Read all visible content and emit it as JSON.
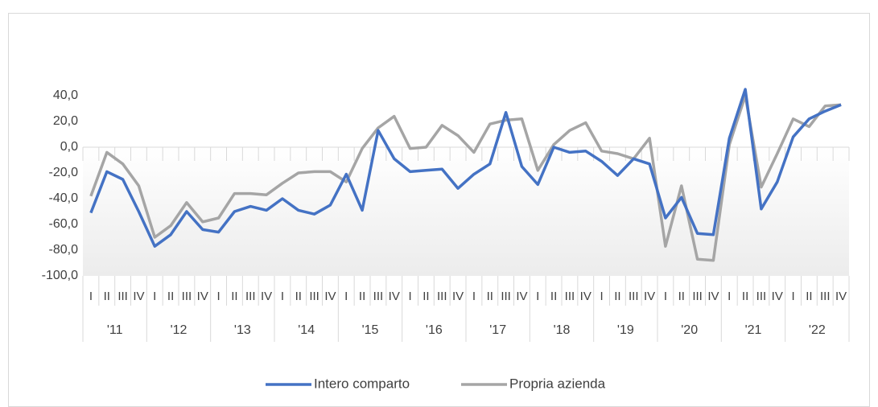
{
  "chart_data": {
    "type": "line",
    "categories": [
      "I",
      "II",
      "III",
      "IV",
      "I",
      "II",
      "III",
      "IV",
      "I",
      "II",
      "III",
      "IV",
      "I",
      "II",
      "III",
      "IV",
      "I",
      "II",
      "III",
      "IV",
      "I",
      "II",
      "III",
      "IV",
      "I",
      "II",
      "III",
      "IV",
      "I",
      "II",
      "III",
      "IV",
      "I",
      "II",
      "III",
      "IV",
      "I",
      "II",
      "III",
      "IV",
      "I",
      "II",
      "III",
      "IV",
      "I",
      "II",
      "III",
      "IV"
    ],
    "years": [
      "'11",
      "'12",
      "'13",
      "'14",
      "'15",
      "'16",
      "'17",
      "'18",
      "'19",
      "'20",
      "'21",
      "'22"
    ],
    "series": [
      {
        "name": "Intero comparto",
        "color": "#4472c4",
        "values": [
          -51,
          -19,
          -25,
          -50,
          -77,
          -68,
          -50,
          -64,
          -66,
          -50,
          -46,
          -49,
          -40,
          -49,
          -52,
          -45,
          -21,
          -49,
          13,
          -9,
          -19,
          -18,
          -17,
          -32,
          -21,
          -13,
          27,
          -15,
          -29,
          0,
          -4,
          -3,
          -11,
          -22,
          -9,
          -13,
          -55,
          -39,
          -67,
          -68,
          7,
          45,
          -48,
          -27,
          8,
          22,
          28,
          33
        ]
      },
      {
        "name": "Propria azienda",
        "color": "#a5a5a5",
        "values": [
          -38,
          -4,
          -13,
          -30,
          -70,
          -61,
          -43,
          -58,
          -55,
          -36,
          -36,
          -37,
          -28,
          -20,
          -19,
          -19,
          -27,
          -1,
          15,
          24,
          -1,
          0,
          17,
          9,
          -4,
          18,
          21,
          22,
          -18,
          2,
          13,
          19,
          -3,
          -5,
          -9,
          7,
          -77,
          -30,
          -87,
          -88,
          2,
          40,
          -31,
          -5,
          22,
          16,
          32,
          33
        ]
      }
    ],
    "ylim": [
      -100,
      40
    ],
    "yticks": [
      {
        "value": -100,
        "label": "-100,0"
      },
      {
        "value": -80,
        "label": "-80,0"
      },
      {
        "value": -60,
        "label": "-60,0"
      },
      {
        "value": -40,
        "label": "-40,0"
      },
      {
        "value": -20,
        "label": "-20,0"
      },
      {
        "value": 0,
        "label": "0,0"
      },
      {
        "value": 20,
        "label": "20,0"
      },
      {
        "value": 40,
        "label": "40,0"
      }
    ]
  }
}
